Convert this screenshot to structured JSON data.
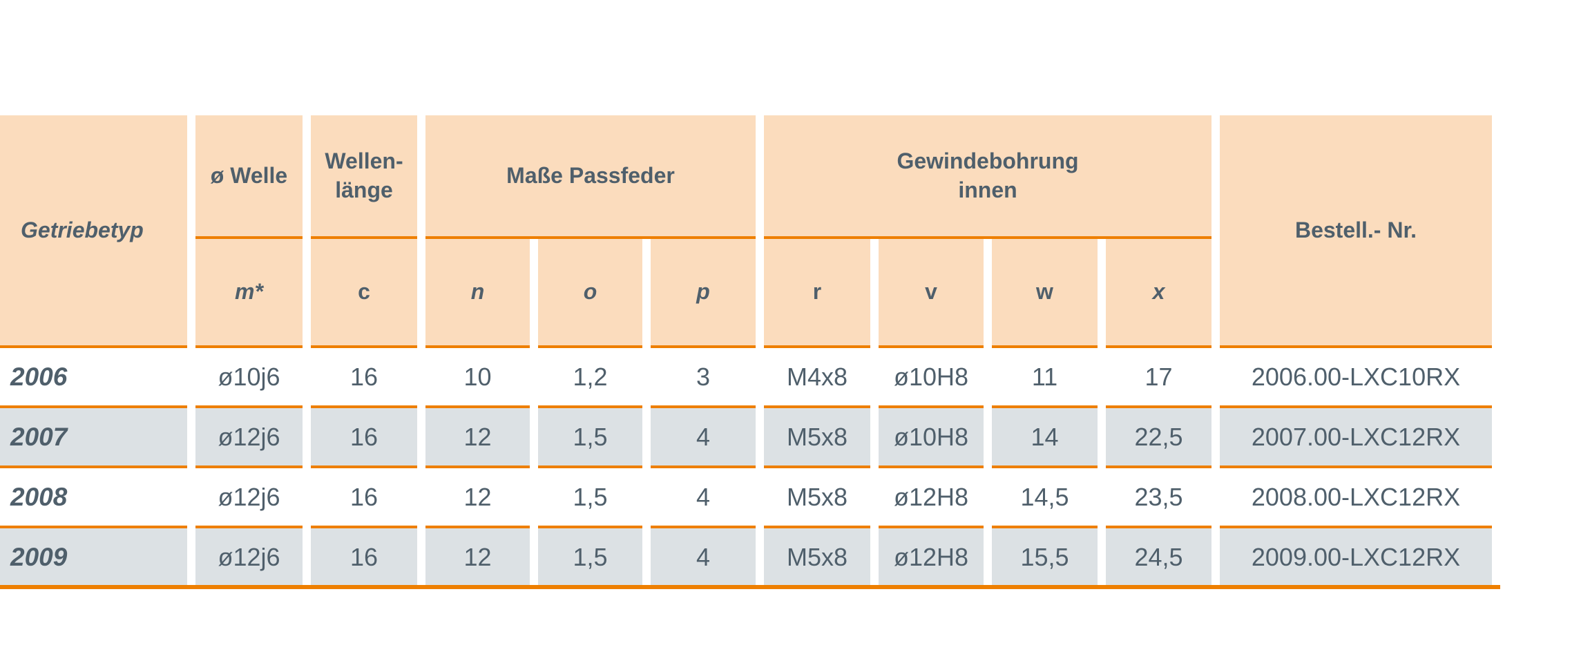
{
  "colors": {
    "header_bg": "#FBDCBD",
    "row_alt_bg": "#DCE1E4",
    "row_bg": "#FFFFFF",
    "accent_orange": "#EE7F00",
    "text": "#4F5F6B",
    "page_bg": "#FFFFFF"
  },
  "table": {
    "headers": {
      "getriebetyp": "Getriebetyp",
      "welle": "ø Welle",
      "wellenlaenge": "Wellen-\nlänge",
      "masse_passfeder": "Maße Passfeder",
      "gewindebohrung_innen": "Gewindebohrung\ninnen",
      "bestell_nr": "Bestell.- Nr."
    },
    "subheaders": [
      {
        "key": "m",
        "label": "m*"
      },
      {
        "key": "c",
        "label": "c"
      },
      {
        "key": "n",
        "label": "n"
      },
      {
        "key": "o",
        "label": "o"
      },
      {
        "key": "p",
        "label": "p"
      },
      {
        "key": "r",
        "label": "r"
      },
      {
        "key": "v",
        "label": "v"
      },
      {
        "key": "w",
        "label": "w"
      },
      {
        "key": "x",
        "label": "x"
      }
    ],
    "rows": [
      {
        "type": "2006",
        "values": [
          "ø10j6",
          "16",
          "10",
          "1,2",
          "3",
          "M4x8",
          "ø10H8",
          "11",
          "17",
          "2006.00-LXC10RX"
        ]
      },
      {
        "type": "2007",
        "values": [
          "ø12j6",
          "16",
          "12",
          "1,5",
          "4",
          "M5x8",
          "ø10H8",
          "14",
          "22,5",
          "2007.00-LXC12RX"
        ]
      },
      {
        "type": "2008",
        "values": [
          "ø12j6",
          "16",
          "12",
          "1,5",
          "4",
          "M5x8",
          "ø12H8",
          "14,5",
          "23,5",
          "2008.00-LXC12RX"
        ]
      },
      {
        "type": "2009",
        "values": [
          "ø12j6",
          "16",
          "12",
          "1,5",
          "4",
          "M5x8",
          "ø12H8",
          "15,5",
          "24,5",
          "2009.00-LXC12RX"
        ]
      }
    ]
  }
}
